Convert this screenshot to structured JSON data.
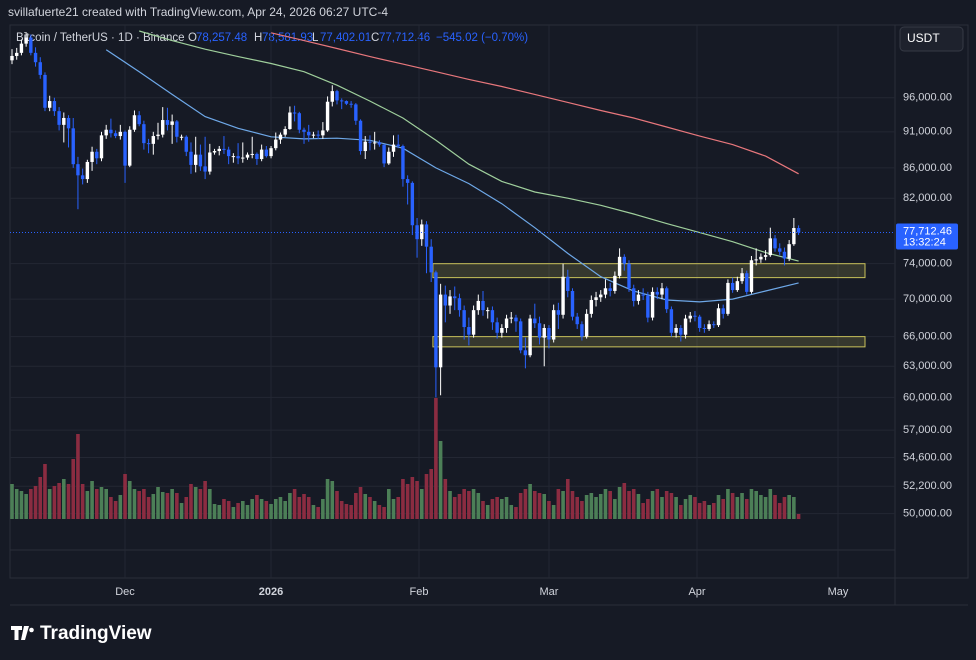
{
  "header": {
    "attribution": "svillafuerte21 created with TradingView.com, Apr 24, 2026 06:27 UTC-4",
    "symbol": "Bitcoin / TetherUS · 1D · Binance",
    "ohlc": [
      {
        "label": "O",
        "value": "78,257.48"
      },
      {
        "label": "H",
        "value": "78,581.93"
      },
      {
        "label": "L",
        "value": "77,402.01"
      },
      {
        "label": "C",
        "value": "77,712.46"
      }
    ],
    "change": "−545.02 (−0.70%)",
    "currency": "USDT"
  },
  "chart_data": {
    "type": "candlestick",
    "log": true,
    "grid": true,
    "ylim": [
      45200,
      107600
    ],
    "yticks": [
      {
        "value": 96000,
        "label": "96,000.00"
      },
      {
        "value": 91000,
        "label": "91,000.00"
      },
      {
        "value": 86000,
        "label": "86,000.00"
      },
      {
        "value": 82000,
        "label": "82,000.00"
      },
      {
        "value": 74000,
        "label": "74,000.00"
      },
      {
        "value": 70000,
        "label": "70,000.00"
      },
      {
        "value": 66000,
        "label": "66,000.00"
      },
      {
        "value": 63000,
        "label": "63,000.00"
      },
      {
        "value": 60000,
        "label": "60,000.00"
      },
      {
        "value": 57000,
        "label": "57,000.00"
      },
      {
        "value": 54600,
        "label": "54,600.00"
      },
      {
        "value": 52200,
        "label": "52,200.00"
      },
      {
        "value": 50000,
        "label": "50,000.00"
      }
    ],
    "xticks": [
      "Dec",
      "2026",
      "Feb",
      "Mar",
      "Apr",
      "May"
    ],
    "up_color": "#ffffff",
    "down_color": "#2962ff",
    "volume_up_color": "#4c7f57",
    "volume_down_color": "#8b2c41",
    "zone_color": "#c9c25a",
    "last_price_label": "77,712.46",
    "countdown": "13:32:24",
    "candles": [
      [
        101800,
        103600,
        101200,
        102500
      ],
      [
        102500,
        103800,
        101900,
        103000
      ],
      [
        103000,
        105200,
        102600,
        104500
      ],
      [
        104500,
        106400,
        104000,
        105500
      ],
      [
        105500,
        106000,
        102600,
        103000
      ],
      [
        103000,
        103900,
        100800,
        101500
      ],
      [
        101500,
        102300,
        98900,
        99500
      ],
      [
        99500,
        99900,
        94000,
        94500
      ],
      [
        94500,
        96300,
        94000,
        95500
      ],
      [
        95500,
        96000,
        93300,
        94000
      ],
      [
        94000,
        94600,
        91200,
        92000
      ],
      [
        92000,
        93800,
        89500,
        93000
      ],
      [
        93000,
        93400,
        88800,
        91500
      ],
      [
        91500,
        93000,
        86000,
        86500
      ],
      [
        86500,
        87500,
        80600,
        85000
      ],
      [
        85000,
        85900,
        83800,
        84500
      ],
      [
        84500,
        87100,
        84000,
        86800
      ],
      [
        86800,
        88900,
        85600,
        88200
      ],
      [
        88200,
        88600,
        86500,
        87300
      ],
      [
        87300,
        91000,
        86900,
        90500
      ],
      [
        90500,
        92000,
        90000,
        91300
      ],
      [
        91300,
        92900,
        90200,
        90800
      ],
      [
        90800,
        91200,
        90100,
        90400
      ],
      [
        90400,
        92000,
        89900,
        91000
      ],
      [
        91000,
        91200,
        84000,
        86300
      ],
      [
        86300,
        91800,
        86100,
        91300
      ],
      [
        91300,
        94100,
        91000,
        93400
      ],
      [
        93400,
        94000,
        91800,
        92100
      ],
      [
        92100,
        92600,
        88500,
        89400
      ],
      [
        89400,
        90000,
        88000,
        89300
      ],
      [
        89300,
        91000,
        87800,
        90400
      ],
      [
        90400,
        92300,
        89900,
        90600
      ],
      [
        90600,
        94600,
        90200,
        92700
      ],
      [
        92700,
        94500,
        91200,
        92000
      ],
      [
        92000,
        93500,
        89300,
        92500
      ],
      [
        92500,
        92700,
        89500,
        90300
      ],
      [
        90300,
        90600,
        89800,
        90300
      ],
      [
        90300,
        90500,
        87600,
        88200
      ],
      [
        88200,
        89500,
        85200,
        86400
      ],
      [
        86400,
        90300,
        85400,
        87800
      ],
      [
        87800,
        89200,
        85600,
        86200
      ],
      [
        86200,
        90300,
        84500,
        85500
      ],
      [
        85500,
        89300,
        85100,
        88100
      ],
      [
        88100,
        88600,
        87800,
        88300
      ],
      [
        88300,
        89000,
        87700,
        88600
      ],
      [
        88600,
        90400,
        87900,
        88500
      ],
      [
        88500,
        88900,
        86500,
        87600
      ],
      [
        87600,
        88000,
        86700,
        87600
      ],
      [
        87600,
        89400,
        86500,
        87300
      ],
      [
        87300,
        89500,
        86700,
        87400
      ],
      [
        87400,
        88100,
        87100,
        87800
      ],
      [
        87800,
        90300,
        87300,
        87900
      ],
      [
        87900,
        88100,
        86400,
        87200
      ],
      [
        87200,
        89200,
        86900,
        88500
      ],
      [
        88500,
        89000,
        87400,
        87600
      ],
      [
        87600,
        89000,
        87300,
        88700
      ],
      [
        88700,
        90900,
        88400,
        89900
      ],
      [
        89900,
        90900,
        89300,
        90600
      ],
      [
        90600,
        91800,
        90300,
        91400
      ],
      [
        91400,
        94700,
        91300,
        93800
      ],
      [
        93800,
        94800,
        92500,
        93700
      ],
      [
        93700,
        93900,
        90800,
        91300
      ],
      [
        91300,
        91600,
        89300,
        91000
      ],
      [
        91000,
        92000,
        89600,
        90500
      ],
      [
        90500,
        91000,
        90100,
        90600
      ],
      [
        90600,
        91200,
        90000,
        90500
      ],
      [
        90500,
        92400,
        90000,
        91200
      ],
      [
        91200,
        96200,
        91000,
        95400
      ],
      [
        95400,
        97900,
        94700,
        97000
      ],
      [
        97000,
        97200,
        95000,
        95600
      ],
      [
        95600,
        95900,
        94300,
        95500
      ],
      [
        95500,
        95600,
        94900,
        95100
      ],
      [
        95100,
        95500,
        94500,
        95000
      ],
      [
        95000,
        95200,
        92000,
        92600
      ],
      [
        92600,
        92800,
        87800,
        88300
      ],
      [
        88300,
        90400,
        87200,
        89600
      ],
      [
        89600,
        90500,
        88400,
        89500
      ],
      [
        89500,
        91000,
        88500,
        89500
      ],
      [
        89500,
        89800,
        88900,
        89200
      ],
      [
        89200,
        89200,
        86100,
        86600
      ],
      [
        86600,
        88800,
        86400,
        88200
      ],
      [
        88200,
        90500,
        87500,
        89200
      ],
      [
        89200,
        90600,
        88700,
        89000
      ],
      [
        89000,
        89200,
        83500,
        84500
      ],
      [
        84500,
        85000,
        81200,
        84000
      ],
      [
        84000,
        84200,
        77400,
        78600
      ],
      [
        78600,
        79500,
        74700,
        76900
      ],
      [
        76900,
        79300,
        76100,
        78700
      ],
      [
        78700,
        79100,
        72900,
        76000
      ],
      [
        76000,
        76900,
        71900,
        73000
      ],
      [
        73000,
        73200,
        60000,
        62900
      ],
      [
        62900,
        71700,
        60200,
        70500
      ],
      [
        70500,
        71500,
        67500,
        69300
      ],
      [
        69300,
        71000,
        68400,
        70300
      ],
      [
        70300,
        71400,
        68800,
        70100
      ],
      [
        70100,
        70600,
        68100,
        68800
      ],
      [
        68800,
        69300,
        65700,
        67000
      ],
      [
        67000,
        68000,
        65100,
        66200
      ],
      [
        66200,
        69300,
        65900,
        68800
      ],
      [
        68800,
        70500,
        68300,
        69800
      ],
      [
        69800,
        70900,
        68200,
        68800
      ],
      [
        68800,
        69100,
        67900,
        68800
      ],
      [
        68800,
        69200,
        66700,
        67500
      ],
      [
        67500,
        68000,
        65800,
        66400
      ],
      [
        66400,
        67300,
        65900,
        66900
      ],
      [
        66900,
        68300,
        66400,
        67900
      ],
      [
        67900,
        68600,
        67400,
        68000
      ],
      [
        68000,
        68300,
        66500,
        67600
      ],
      [
        67600,
        67900,
        64300,
        64600
      ],
      [
        64600,
        65900,
        62800,
        64100
      ],
      [
        64100,
        68300,
        63900,
        67900
      ],
      [
        67900,
        69500,
        66900,
        67400
      ],
      [
        67400,
        68100,
        65200,
        65900
      ],
      [
        65900,
        67300,
        63000,
        66900
      ],
      [
        66900,
        67200,
        64800,
        65700
      ],
      [
        65700,
        69400,
        65400,
        68800
      ],
      [
        68800,
        69600,
        66800,
        68300
      ],
      [
        68300,
        74000,
        67900,
        72500
      ],
      [
        72500,
        73300,
        70200,
        70900
      ],
      [
        70900,
        71200,
        67700,
        68100
      ],
      [
        68100,
        68500,
        66800,
        67300
      ],
      [
        67300,
        67600,
        65600,
        66000
      ],
      [
        66000,
        68900,
        65800,
        68400
      ],
      [
        68400,
        70400,
        68000,
        69900
      ],
      [
        69900,
        70800,
        69200,
        70200
      ],
      [
        70200,
        71000,
        69700,
        70500
      ],
      [
        70500,
        72200,
        70100,
        71200
      ],
      [
        71200,
        71800,
        70300,
        70900
      ],
      [
        70900,
        73100,
        70600,
        72600
      ],
      [
        72600,
        75800,
        72300,
        74800
      ],
      [
        74800,
        75100,
        73200,
        74000
      ],
      [
        74000,
        74400,
        70800,
        71200
      ],
      [
        71200,
        71600,
        69200,
        69800
      ],
      [
        69800,
        71000,
        69400,
        70500
      ],
      [
        70500,
        71200,
        69900,
        70400
      ],
      [
        70400,
        70800,
        67500,
        68000
      ],
      [
        68000,
        71300,
        67700,
        70800
      ],
      [
        70800,
        71300,
        70000,
        70500
      ],
      [
        70500,
        71800,
        70000,
        71200
      ],
      [
        71200,
        71400,
        68500,
        68900
      ],
      [
        68900,
        69200,
        66000,
        66400
      ],
      [
        66400,
        67300,
        65900,
        66900
      ],
      [
        66900,
        67200,
        65500,
        66200
      ],
      [
        66200,
        68300,
        65800,
        67900
      ],
      [
        67900,
        68600,
        67500,
        68200
      ],
      [
        68200,
        68700,
        67600,
        68100
      ],
      [
        68100,
        68300,
        66500,
        66900
      ],
      [
        66900,
        67300,
        66400,
        66800
      ],
      [
        66800,
        67700,
        66600,
        67300
      ],
      [
        67300,
        67600,
        66900,
        67200
      ],
      [
        67200,
        69500,
        67000,
        69000
      ],
      [
        69000,
        69400,
        67900,
        68400
      ],
      [
        68400,
        72200,
        68200,
        71800
      ],
      [
        71800,
        72400,
        70700,
        71000
      ],
      [
        71000,
        72500,
        70800,
        72000
      ],
      [
        72000,
        73500,
        71700,
        72900
      ],
      [
        72900,
        73200,
        70500,
        70800
      ],
      [
        70800,
        74900,
        70600,
        74400
      ],
      [
        74400,
        75800,
        73800,
        74500
      ],
      [
        74500,
        75200,
        74100,
        74800
      ],
      [
        74800,
        75600,
        74400,
        75000
      ],
      [
        75000,
        78300,
        74800,
        77000
      ],
      [
        77000,
        77400,
        75400,
        75800
      ],
      [
        75800,
        76400,
        75000,
        75400
      ],
      [
        75400,
        75900,
        73800,
        74600
      ],
      [
        74600,
        76800,
        74300,
        76300
      ],
      [
        76300,
        79500,
        76100,
        78257.48
      ],
      [
        78257.48,
        78581.93,
        77402.01,
        77712.46
      ]
    ],
    "volume": [
      35,
      30,
      28,
      25,
      30,
      33,
      42,
      55,
      30,
      33,
      36,
      40,
      35,
      60,
      85,
      35,
      28,
      38,
      30,
      32,
      30,
      22,
      18,
      24,
      45,
      38,
      30,
      28,
      30,
      22,
      25,
      32,
      27,
      26,
      30,
      26,
      16,
      22,
      35,
      32,
      30,
      38,
      30,
      15,
      14,
      20,
      18,
      12,
      16,
      18,
      14,
      20,
      24,
      20,
      18,
      15,
      20,
      22,
      18,
      26,
      30,
      22,
      25,
      22,
      14,
      12,
      20,
      40,
      38,
      28,
      18,
      15,
      14,
      26,
      32,
      25,
      22,
      18,
      14,
      12,
      30,
      20,
      22,
      40,
      35,
      42,
      38,
      30,
      45,
      50,
      121,
      78,
      40,
      28,
      22,
      25,
      30,
      28,
      30,
      26,
      18,
      14,
      20,
      22,
      20,
      22,
      14,
      12,
      26,
      30,
      35,
      28,
      26,
      25,
      18,
      14,
      30,
      28,
      40,
      28,
      22,
      18,
      24,
      26,
      22,
      25,
      30,
      28,
      20,
      32,
      36,
      28,
      30,
      25,
      16,
      20,
      28,
      30,
      22,
      28,
      26,
      22,
      14,
      20,
      24,
      22,
      16,
      18,
      14,
      16,
      24,
      20,
      30,
      26,
      22,
      26,
      20,
      30,
      28,
      24,
      22,
      30,
      24,
      16,
      22,
      24,
      22,
      5
    ],
    "ma": [
      {
        "color": "#6ea8e8",
        "values": [
          null,
          null,
          103500,
          100000,
          96500,
          93200,
          91500,
          90300,
          90000,
          90100,
          89800,
          88700,
          86000,
          83900,
          81300,
          78300,
          75200,
          72500,
          70900,
          69900,
          69700,
          70000,
          70900,
          71800
        ]
      },
      {
        "color": "#9fcf9c",
        "values": [
          null,
          null,
          null,
          106600,
          105000,
          103600,
          102400,
          101300,
          100000,
          97900,
          95500,
          93000,
          89800,
          86500,
          84200,
          82800,
          82000,
          81100,
          80000,
          78800,
          77700,
          76600,
          75300,
          74300
        ]
      },
      {
        "color": "#e8777c",
        "values": [
          null,
          null,
          null,
          null,
          null,
          null,
          null,
          106300,
          105000,
          103700,
          102400,
          101200,
          100000,
          98800,
          97700,
          96500,
          95300,
          94100,
          93000,
          91700,
          90400,
          89200,
          87600,
          85200
        ]
      }
    ],
    "zones": [
      [
        72400,
        74000
      ],
      [
        64950,
        66000
      ]
    ]
  },
  "footer": {
    "logo": "TradingView"
  }
}
